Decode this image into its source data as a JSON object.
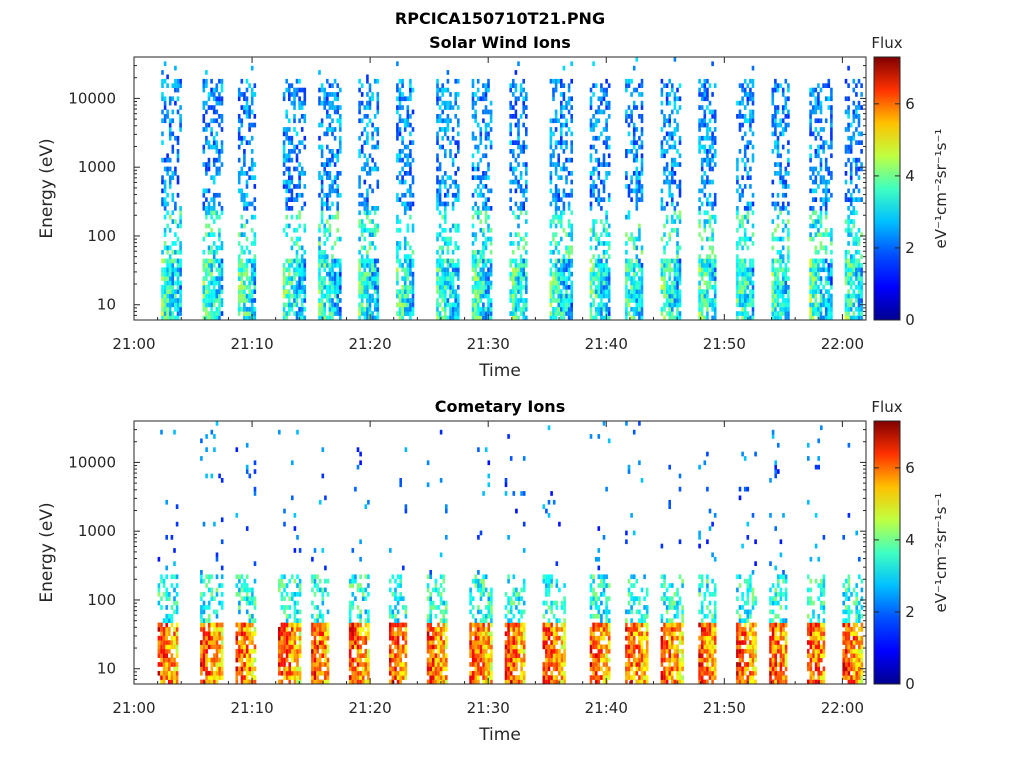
{
  "figure_title": "RPCICA150710T21.PNG",
  "colorscale": [
    "#00008f",
    "#0000ff",
    "#0080ff",
    "#00ffff",
    "#80ff80",
    "#ffff00",
    "#ff8000",
    "#ff0000",
    "#800000"
  ],
  "chart_data": [
    {
      "type": "heatmap",
      "title": "Solar Wind Ions",
      "xlabel": "Time",
      "ylabel": "Energy (eV)",
      "x_ticks": [
        "21:00",
        "21:10",
        "21:20",
        "21:30",
        "21:40",
        "21:50",
        "22:00"
      ],
      "xlim_minutes": [
        0,
        62
      ],
      "y_ticks": [
        "10",
        "100",
        "1000",
        "10000"
      ],
      "y_scale": "log",
      "ylim": [
        6,
        40000
      ],
      "colorbar": {
        "label_top": "Flux",
        "label": "eV⁻¹cm⁻²sr⁻¹s⁻¹",
        "ticks": [
          "0",
          "2",
          "4",
          "6"
        ],
        "range": [
          0,
          7.3
        ]
      },
      "sweeps_start_minutes": [
        2.3,
        5.8,
        8.8,
        12.6,
        15.6,
        19.0,
        22.2,
        25.6,
        28.6,
        31.8,
        35.2,
        38.6,
        41.6,
        44.6,
        47.8,
        51.0,
        54.0,
        57.2,
        60.2
      ],
      "low_energy_flux": 3.8,
      "high_energy_flux": 1.2
    },
    {
      "type": "heatmap",
      "title": "Cometary Ions",
      "xlabel": "Time",
      "ylabel": "Energy (eV)",
      "x_ticks": [
        "21:00",
        "21:10",
        "21:20",
        "21:30",
        "21:40",
        "21:50",
        "22:00"
      ],
      "xlim_minutes": [
        0,
        62
      ],
      "y_ticks": [
        "10",
        "100",
        "1000",
        "10000"
      ],
      "y_scale": "log",
      "ylim": [
        6,
        40000
      ],
      "colorbar": {
        "label_top": "Flux",
        "label": "eV⁻¹cm⁻²sr⁻¹s⁻¹",
        "ticks": [
          "0",
          "2",
          "4",
          "6"
        ],
        "range": [
          0,
          7.3
        ]
      },
      "sweeps_start_minutes": [
        2.0,
        5.6,
        8.6,
        12.2,
        15.0,
        18.2,
        21.6,
        24.8,
        28.4,
        31.4,
        34.6,
        38.6,
        41.6,
        44.6,
        47.8,
        51.0,
        53.8,
        57.0,
        60.0
      ],
      "low_energy_flux": 6.5,
      "high_energy_flux": 1.0
    }
  ]
}
